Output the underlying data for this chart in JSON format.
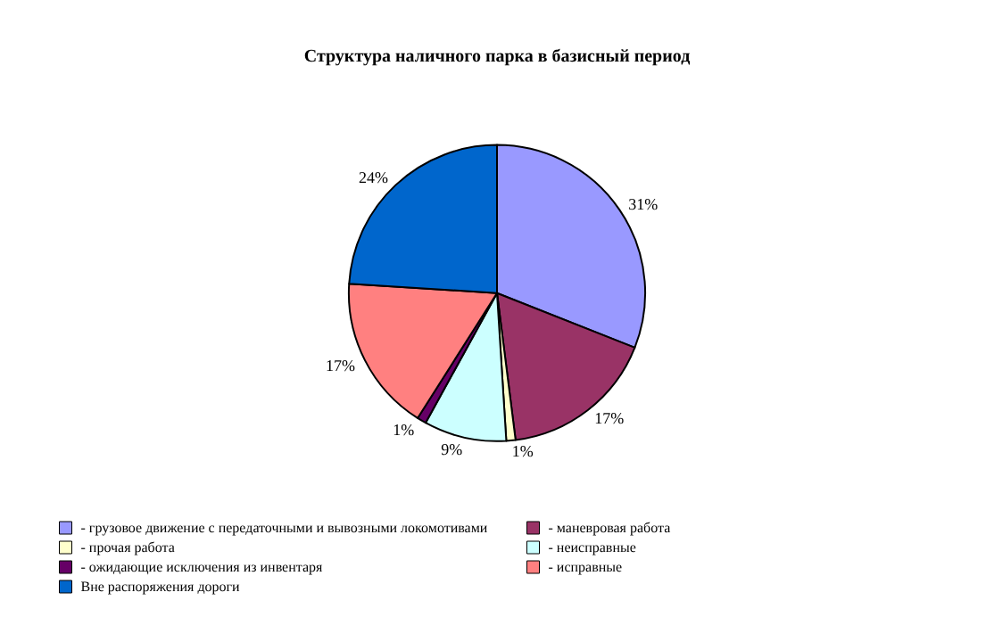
{
  "chart_data": {
    "type": "pie",
    "title": "Структура наличного парка в базисный период",
    "categories": [
      "- грузовое движение с передаточными и вывозными локомотивами",
      "- маневровая работа",
      "- прочая работа",
      "- неисправные",
      "- ожидающие исключения из инвентаря",
      "- исправные",
      "Вне распоряжения дороги"
    ],
    "values": [
      31,
      17,
      1,
      9,
      1,
      17,
      24
    ],
    "colors": [
      "#9999ff",
      "#993366",
      "#ffffcc",
      "#ccffff",
      "#660066",
      "#ff8080",
      "#0066cc"
    ],
    "value_labels": [
      "31%",
      "17%",
      "1%",
      "9%",
      "1%",
      "17%",
      "24%"
    ],
    "legend": "bottom"
  }
}
